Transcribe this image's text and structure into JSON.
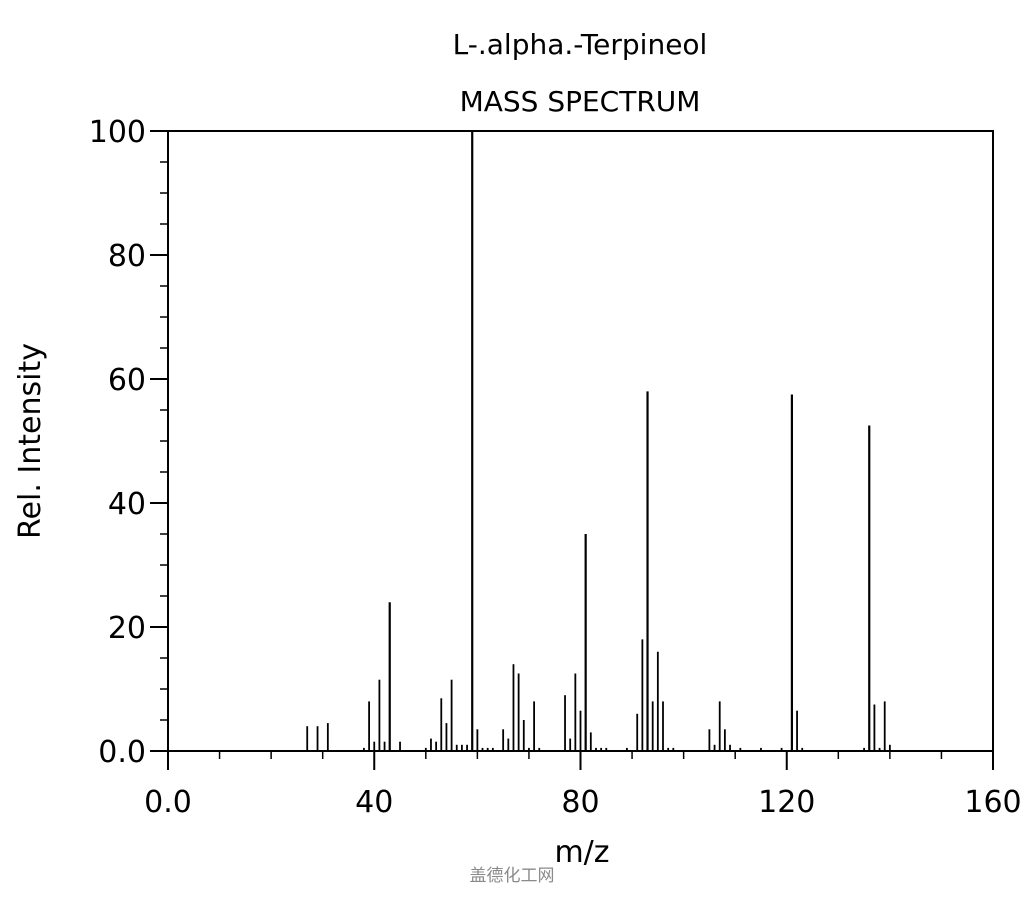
{
  "chart_data": {
    "type": "bar",
    "title": "L-.alpha.-Terpineol",
    "subtitle": "MASS SPECTRUM",
    "xlabel": "m/z",
    "ylabel": "Rel. Intensity",
    "xlim": [
      0,
      160
    ],
    "ylim": [
      0,
      100
    ],
    "x_ticks": [
      "0.0",
      "40",
      "80",
      "120",
      "160"
    ],
    "x_tick_values": [
      0,
      40,
      80,
      120,
      160
    ],
    "y_ticks": [
      "0.0",
      "20",
      "40",
      "60",
      "80",
      "100"
    ],
    "y_tick_values": [
      0,
      20,
      40,
      60,
      80,
      100
    ],
    "grid": false,
    "bar_color": "#000000",
    "peaks": [
      {
        "x": 27,
        "y": 4
      },
      {
        "x": 29,
        "y": 4
      },
      {
        "x": 31,
        "y": 4.5
      },
      {
        "x": 38,
        "y": 0.5
      },
      {
        "x": 39,
        "y": 8
      },
      {
        "x": 40,
        "y": 1.5
      },
      {
        "x": 41,
        "y": 11.5
      },
      {
        "x": 42,
        "y": 1.5
      },
      {
        "x": 43,
        "y": 24
      },
      {
        "x": 45,
        "y": 1.5
      },
      {
        "x": 50,
        "y": 0.5
      },
      {
        "x": 51,
        "y": 2
      },
      {
        "x": 52,
        "y": 1.5
      },
      {
        "x": 53,
        "y": 8.5
      },
      {
        "x": 54,
        "y": 4.5
      },
      {
        "x": 55,
        "y": 11.5
      },
      {
        "x": 56,
        "y": 1
      },
      {
        "x": 57,
        "y": 1
      },
      {
        "x": 58,
        "y": 1
      },
      {
        "x": 59,
        "y": 100
      },
      {
        "x": 60,
        "y": 3.5
      },
      {
        "x": 61,
        "y": 0.5
      },
      {
        "x": 62,
        "y": 0.5
      },
      {
        "x": 63,
        "y": 0.5
      },
      {
        "x": 65,
        "y": 3.5
      },
      {
        "x": 66,
        "y": 2
      },
      {
        "x": 67,
        "y": 14
      },
      {
        "x": 68,
        "y": 12.5
      },
      {
        "x": 69,
        "y": 5
      },
      {
        "x": 70,
        "y": 0.5
      },
      {
        "x": 71,
        "y": 8
      },
      {
        "x": 72,
        "y": 0.5
      },
      {
        "x": 77,
        "y": 9
      },
      {
        "x": 78,
        "y": 2
      },
      {
        "x": 79,
        "y": 12.5
      },
      {
        "x": 80,
        "y": 6.5
      },
      {
        "x": 81,
        "y": 35
      },
      {
        "x": 82,
        "y": 3
      },
      {
        "x": 83,
        "y": 0.5
      },
      {
        "x": 84,
        "y": 0.5
      },
      {
        "x": 85,
        "y": 0.5
      },
      {
        "x": 89,
        "y": 0.5
      },
      {
        "x": 91,
        "y": 6
      },
      {
        "x": 92,
        "y": 18
      },
      {
        "x": 93,
        "y": 58
      },
      {
        "x": 94,
        "y": 8
      },
      {
        "x": 95,
        "y": 16
      },
      {
        "x": 96,
        "y": 8
      },
      {
        "x": 97,
        "y": 0.5
      },
      {
        "x": 98,
        "y": 0.5
      },
      {
        "x": 105,
        "y": 3.5
      },
      {
        "x": 106,
        "y": 1
      },
      {
        "x": 107,
        "y": 8
      },
      {
        "x": 108,
        "y": 3.5
      },
      {
        "x": 109,
        "y": 1
      },
      {
        "x": 111,
        "y": 0.5
      },
      {
        "x": 115,
        "y": 0.5
      },
      {
        "x": 119,
        "y": 0.5
      },
      {
        "x": 121,
        "y": 57.5
      },
      {
        "x": 122,
        "y": 6.5
      },
      {
        "x": 123,
        "y": 0.5
      },
      {
        "x": 135,
        "y": 0.5
      },
      {
        "x": 136,
        "y": 52.5
      },
      {
        "x": 137,
        "y": 7.5
      },
      {
        "x": 138,
        "y": 0.5
      },
      {
        "x": 139,
        "y": 8
      },
      {
        "x": 140,
        "y": 1
      }
    ]
  },
  "watermark": "盖德化工网"
}
